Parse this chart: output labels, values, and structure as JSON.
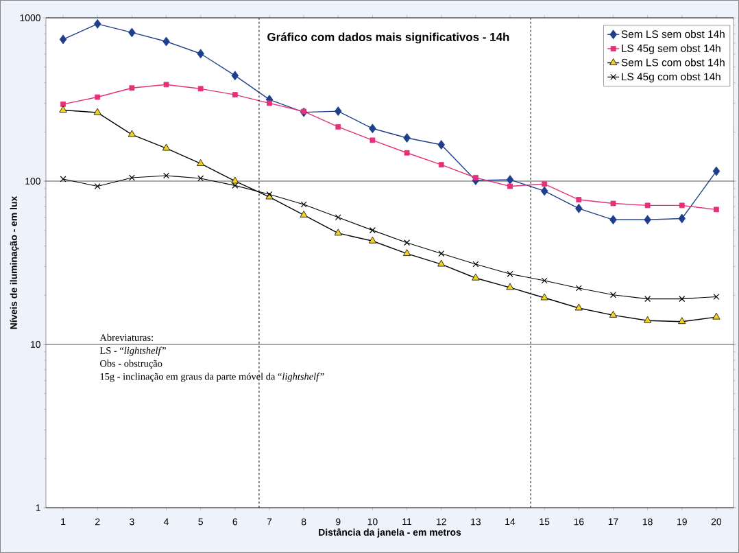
{
  "chart_data": {
    "type": "line",
    "title": "Gráfico com dados mais significativos - 14h",
    "xlabel": "Distância da janela - em metros",
    "ylabel": "Níveis de iluminação - em lux",
    "x": [
      1,
      2,
      3,
      4,
      5,
      6,
      7,
      8,
      9,
      10,
      11,
      12,
      13,
      14,
      15,
      16,
      17,
      18,
      19,
      20
    ],
    "series": [
      {
        "name": "Sem LS sem obst 14h",
        "color": "#1f3f8c",
        "marker": "diamond",
        "values": [
          738,
          918,
          813,
          716,
          603,
          443,
          316,
          264,
          268,
          210,
          184,
          167,
          101,
          102,
          87,
          68,
          58,
          58,
          59,
          115
        ]
      },
      {
        "name": "LS 45g sem obst 14h",
        "color": "#e5307a",
        "marker": "square",
        "values": [
          296,
          327,
          372,
          390,
          368,
          338,
          300,
          267,
          215,
          178,
          149,
          126,
          105,
          93,
          96,
          77,
          73,
          71,
          71,
          67
        ]
      },
      {
        "name": "Sem LS com obst 14h",
        "color": "#f0d21c",
        "marker": "triangle",
        "values": [
          272,
          263,
          193,
          159,
          128,
          100,
          80,
          62,
          48,
          43,
          36,
          31,
          25.5,
          22.3,
          19.3,
          16.7,
          15.1,
          14.0,
          13.8,
          14.7
        ]
      },
      {
        "name": "LS 45g com obst 14h",
        "color": "#000000",
        "marker": "cross",
        "values": [
          103,
          93,
          105,
          108,
          104,
          94,
          83,
          72,
          60,
          50,
          42,
          36,
          31,
          27,
          24.6,
          22.1,
          20.1,
          19.0,
          19.0,
          19.6
        ]
      }
    ],
    "log": "y",
    "xlim": [
      0.5,
      20.5
    ],
    "ylim": [
      1,
      1000
    ],
    "xticks": [
      1,
      2,
      3,
      4,
      5,
      6,
      7,
      8,
      9,
      10,
      11,
      12,
      13,
      14,
      15,
      16,
      17,
      18,
      19,
      20
    ],
    "yticks": [
      1,
      10,
      100,
      1000
    ],
    "grid": "y",
    "legend": "top right",
    "line_style": "solid",
    "ref_lines": [
      {
        "axis": "x",
        "value": 6.7,
        "line_style": "dashed",
        "color": "#000000"
      },
      {
        "axis": "x",
        "value": 14.6,
        "line_style": "dashed",
        "color": "#000000"
      }
    ],
    "annotations": [
      "Abreviaturas:",
      "LS - “*lightshelf*”",
      "Obs - obstrução",
      "15g - inclinação em graus da parte móvel da “*lightshelf*”"
    ]
  }
}
